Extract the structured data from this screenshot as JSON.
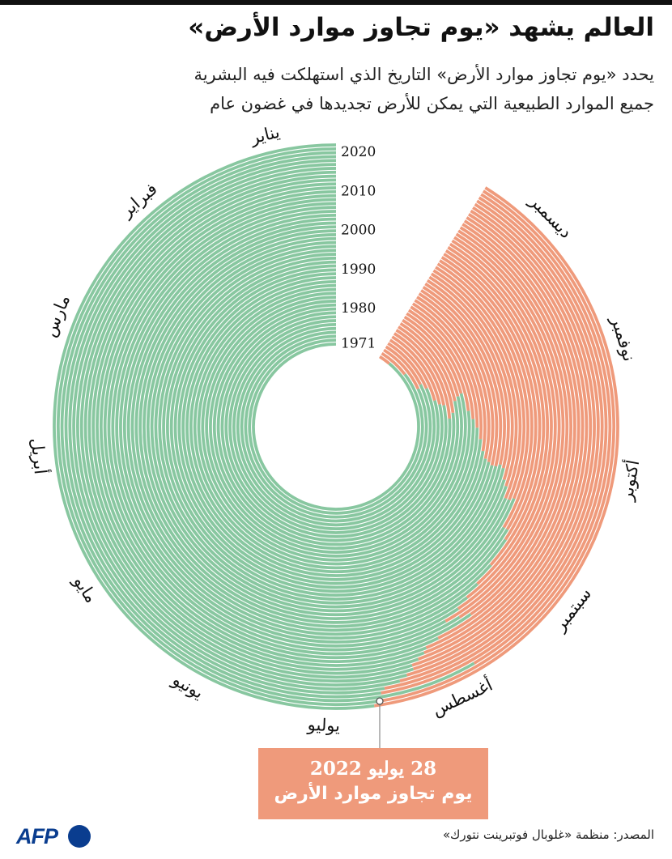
{
  "title": "العالم يشهد «يوم تجاوز موارد الأرض»",
  "subtitle": {
    "line1": "يحدد «يوم تجاوز موارد الأرض» التاريخ الذي استهلكت فيه البشرية",
    "line2": "جميع الموارد الطبيعية التي يمكن للأرض تجديدها في غضون عام"
  },
  "colors": {
    "consumed": "#88c7a0",
    "overshoot": "#ef9a7b",
    "separator": "#ffffff",
    "text": "#111111"
  },
  "chart_data": {
    "type": "radial-bar",
    "title": "يوم تجاوز موارد الأرض",
    "years": [
      1971,
      2022
    ],
    "year_labels": [
      "1971",
      "1980",
      "1990",
      "2000",
      "2010",
      "2020"
    ],
    "month_labels": [
      "يناير",
      "فبراير",
      "مارس",
      "أبريل",
      "مايو",
      "يونيو",
      "يوليو",
      "أغسطس",
      "سبتمبر",
      "أكتوبر",
      "نوفمبر",
      "ديسمبر"
    ],
    "angle_unit": "day_of_year",
    "overshoot_day": [
      {
        "year": 1971,
        "day": 356
      },
      {
        "year": 1972,
        "day": 342
      },
      {
        "year": 1973,
        "day": 328
      },
      {
        "year": 1974,
        "day": 330
      },
      {
        "year": 1975,
        "day": 326
      },
      {
        "year": 1976,
        "day": 317
      },
      {
        "year": 1977,
        "day": 314
      },
      {
        "year": 1978,
        "day": 313
      },
      {
        "year": 1979,
        "day": 305
      },
      {
        "year": 1980,
        "day": 308
      },
      {
        "year": 1981,
        "day": 314
      },
      {
        "year": 1982,
        "day": 316
      },
      {
        "year": 1983,
        "day": 317
      },
      {
        "year": 1984,
        "day": 308
      },
      {
        "year": 1985,
        "day": 304
      },
      {
        "year": 1986,
        "day": 300
      },
      {
        "year": 1987,
        "day": 295
      },
      {
        "year": 1988,
        "day": 290
      },
      {
        "year": 1989,
        "day": 287
      },
      {
        "year": 1990,
        "day": 286
      },
      {
        "year": 1991,
        "day": 285
      },
      {
        "year": 1992,
        "day": 285
      },
      {
        "year": 1993,
        "day": 286
      },
      {
        "year": 1994,
        "day": 285
      },
      {
        "year": 1995,
        "day": 281
      },
      {
        "year": 1996,
        "day": 279
      },
      {
        "year": 1997,
        "day": 275
      },
      {
        "year": 1998,
        "day": 275
      },
      {
        "year": 1999,
        "day": 276
      },
      {
        "year": 2000,
        "day": 266
      },
      {
        "year": 2001,
        "day": 266
      },
      {
        "year": 2002,
        "day": 263
      },
      {
        "year": 2003,
        "day": 254
      },
      {
        "year": 2004,
        "day": 247
      },
      {
        "year": 2005,
        "day": 242
      },
      {
        "year": 2006,
        "day": 238
      },
      {
        "year": 2007,
        "day": 233
      },
      {
        "year": 2008,
        "day": 237
      },
      {
        "year": 2009,
        "day": 240
      },
      {
        "year": 2010,
        "day": 229
      },
      {
        "year": 2011,
        "day": 225
      },
      {
        "year": 2012,
        "day": 224
      },
      {
        "year": 2013,
        "day": 222
      },
      {
        "year": 2014,
        "day": 220
      },
      {
        "year": 2015,
        "day": 220
      },
      {
        "year": 2016,
        "day": 218
      },
      {
        "year": 2017,
        "day": 216
      },
      {
        "year": 2018,
        "day": 212
      },
      {
        "year": 2019,
        "day": 211
      },
      {
        "year": 2020,
        "day": 234
      },
      {
        "year": 2021,
        "day": 210
      },
      {
        "year": 2022,
        "day": 209
      }
    ]
  },
  "callout": {
    "date": "28 يوليو 2022",
    "label": "يوم تجاوز موارد الأرض"
  },
  "logo": {
    "text": "AFP"
  },
  "source": "المصدر: منظمة «غلوبال فوتبرينت نتورك»"
}
